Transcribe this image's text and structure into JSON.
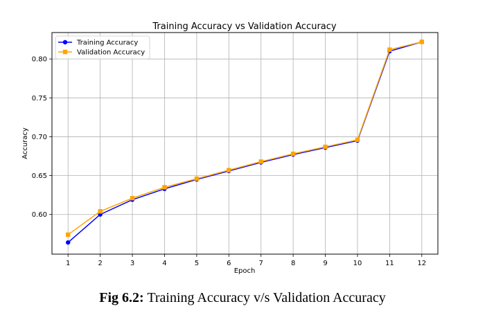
{
  "caption": {
    "label": "Fig 6.2:",
    "text": " Training Accuracy v/s Validation Accuracy"
  },
  "chart_data": {
    "type": "line",
    "title": "Training Accuracy vs Validation Accuracy",
    "xlabel": "Epoch",
    "ylabel": "Accuracy",
    "x": [
      1,
      2,
      3,
      4,
      5,
      6,
      7,
      8,
      9,
      10,
      11,
      12
    ],
    "xlim": [
      0.5,
      12.5
    ],
    "ylim": [
      0.549,
      0.834
    ],
    "yticks": [
      0.6,
      0.65,
      0.7,
      0.75,
      0.8
    ],
    "ytick_labels": [
      "0.60",
      "0.65",
      "0.70",
      "0.75",
      "0.80"
    ],
    "xtick_labels": [
      "1",
      "2",
      "3",
      "4",
      "5",
      "6",
      "7",
      "8",
      "9",
      "10",
      "11",
      "12"
    ],
    "grid": true,
    "legend_position": "top-left",
    "series": [
      {
        "name": "Training Accuracy",
        "color": "#0000ff",
        "marker": "circle",
        "values": [
          0.564,
          0.6,
          0.619,
          0.633,
          0.645,
          0.656,
          0.667,
          0.677,
          0.686,
          0.695,
          0.81,
          0.822
        ]
      },
      {
        "name": "Validation Accuracy",
        "color": "#ffa500",
        "marker": "square",
        "values": [
          0.574,
          0.604,
          0.621,
          0.635,
          0.646,
          0.657,
          0.668,
          0.678,
          0.687,
          0.696,
          0.812,
          0.822
        ]
      }
    ]
  }
}
